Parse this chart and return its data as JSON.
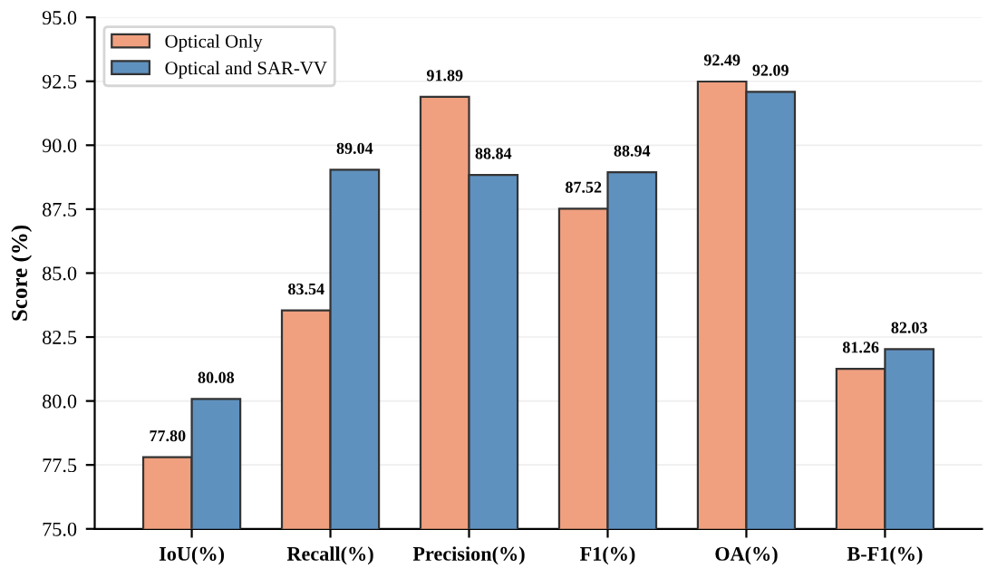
{
  "chart_data": {
    "type": "bar",
    "ylabel": "Score (%)",
    "categories": [
      "IoU(%)",
      "Recall(%)",
      "Precision(%)",
      "F1(%)",
      "OA(%)",
      "B-F1(%)"
    ],
    "series": [
      {
        "name": "Optical Only",
        "color": "#f0a07f",
        "values": [
          77.8,
          83.54,
          91.89,
          87.52,
          92.49,
          81.26
        ]
      },
      {
        "name": "Optical and SAR-VV",
        "color": "#5f91bf",
        "values": [
          80.08,
          89.04,
          88.84,
          88.94,
          92.09,
          82.03
        ]
      }
    ],
    "value_labels": [
      [
        "77.80",
        "83.54",
        "91.89",
        "87.52",
        "92.49",
        "81.26"
      ],
      [
        "80.08",
        "89.04",
        "88.84",
        "88.94",
        "92.09",
        "82.03"
      ]
    ],
    "ylim": [
      75.0,
      95.0
    ],
    "yticks": [
      {
        "value": 75,
        "label": "75.0"
      },
      {
        "value": 77.5,
        "label": "77.5"
      },
      {
        "value": 80,
        "label": "80.0"
      },
      {
        "value": 82.5,
        "label": "82.5"
      },
      {
        "value": 85,
        "label": "85.0"
      },
      {
        "value": 87.5,
        "label": "87.5"
      },
      {
        "value": 90,
        "label": "90.0"
      },
      {
        "value": 92.5,
        "label": "92.5"
      },
      {
        "value": 95,
        "label": "95.0"
      }
    ],
    "grid": "y",
    "legend": "top left"
  }
}
